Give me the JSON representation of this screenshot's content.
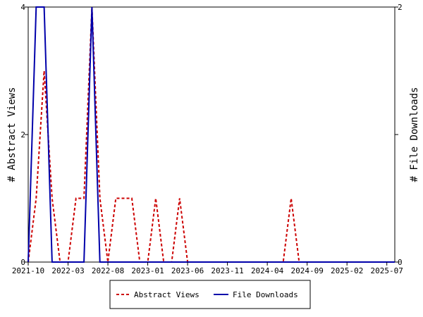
{
  "chart_data": {
    "type": "line",
    "x": [
      "2021-10",
      "2021-11",
      "2021-12",
      "2022-01",
      "2022-02",
      "2022-03",
      "2022-04",
      "2022-05",
      "2022-06",
      "2022-07",
      "2022-08",
      "2022-09",
      "2022-10",
      "2022-11",
      "2022-12",
      "2023-01",
      "2023-02",
      "2023-03",
      "2023-04",
      "2023-05",
      "2023-06",
      "2023-07",
      "2023-08",
      "2023-09",
      "2023-10",
      "2023-11",
      "2023-12",
      "2024-01",
      "2024-02",
      "2024-03",
      "2024-04",
      "2024-05",
      "2024-06",
      "2024-07",
      "2024-08",
      "2024-09",
      "2024-10",
      "2024-11",
      "2024-12",
      "2025-01",
      "2025-02",
      "2025-03",
      "2025-04",
      "2025-05",
      "2025-06",
      "2025-07",
      "2025-08"
    ],
    "x_tick_labels": [
      "2021-10",
      "2022-03",
      "2022-08",
      "2023-01",
      "2023-06",
      "2023-11",
      "2024-04",
      "2024-09",
      "2025-02",
      "2025-07"
    ],
    "series": [
      {
        "name": "Abstract Views",
        "axis": "left",
        "color": "#cc0000",
        "style": "dashed",
        "values": [
          0,
          1,
          3,
          1,
          0,
          0,
          1,
          1,
          4,
          1,
          0,
          1,
          1,
          1,
          0,
          0,
          1,
          0,
          0,
          1,
          0,
          0,
          0,
          0,
          0,
          0,
          0,
          0,
          0,
          0,
          0,
          0,
          0,
          1,
          0,
          0,
          0,
          0,
          0,
          0,
          0,
          0,
          0,
          0,
          0,
          0,
          0
        ]
      },
      {
        "name": "File Downloads",
        "axis": "right",
        "color": "#0000aa",
        "style": "solid",
        "values": [
          0,
          2,
          2,
          0,
          0,
          0,
          0,
          0,
          2,
          0,
          0,
          0,
          0,
          0,
          0,
          0,
          0,
          0,
          0,
          0,
          0,
          0,
          0,
          0,
          0,
          0,
          0,
          0,
          0,
          0,
          0,
          0,
          0,
          0,
          0,
          0,
          0,
          0,
          0,
          0,
          0,
          0,
          0,
          0,
          0,
          0,
          0
        ]
      }
    ],
    "ylabel_left": "# Abstract Views",
    "ylabel_right": "# File Downloads",
    "ylim_left": [
      0,
      4
    ],
    "ylim_right": [
      0,
      2
    ],
    "yticks_left": [
      "0",
      "2",
      "4"
    ],
    "yticks_right": [
      "0",
      "1",
      "2"
    ],
    "yticks_right_labeled": [
      "0",
      "2"
    ],
    "grid": false,
    "legend_position": "bottom-center"
  }
}
